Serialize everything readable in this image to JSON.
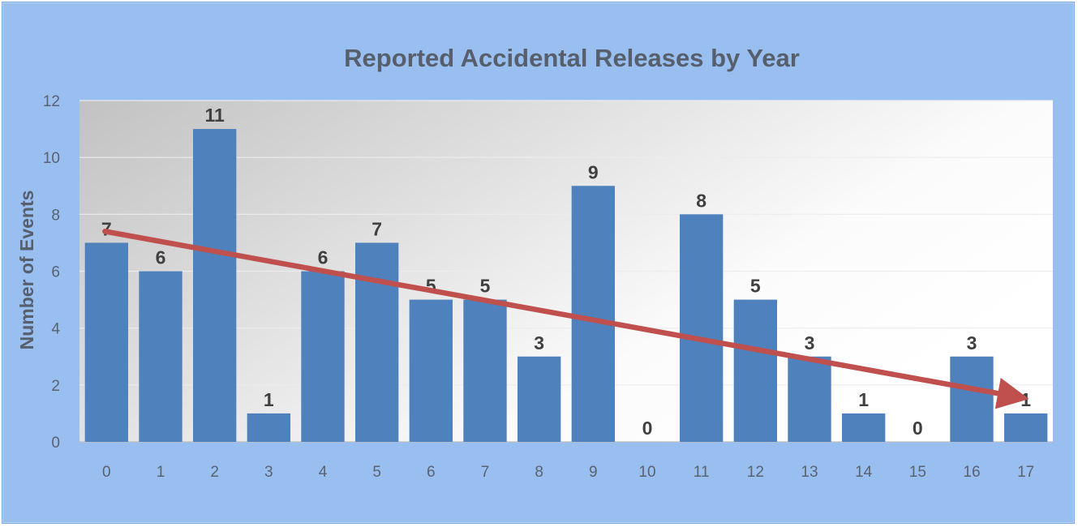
{
  "chart_data": {
    "type": "bar",
    "title": "Reported Accidental Releases by Year",
    "xlabel": "",
    "ylabel": "Number of Events",
    "categories": [
      "0",
      "1",
      "2",
      "3",
      "4",
      "5",
      "6",
      "7",
      "8",
      "9",
      "10",
      "11",
      "12",
      "13",
      "14",
      "15",
      "16",
      "17"
    ],
    "values": [
      7,
      6,
      11,
      1,
      6,
      7,
      5,
      5,
      3,
      9,
      0,
      8,
      5,
      3,
      1,
      0,
      3,
      1
    ],
    "ylim": [
      0,
      12
    ],
    "yticks": [
      0,
      2,
      4,
      6,
      8,
      10,
      12
    ],
    "grid": true,
    "data_labels": true,
    "bar_color": "#4f81bd",
    "trend_arrow": {
      "from_category": "0",
      "from_value": 7.4,
      "to_category": "17",
      "to_value": 1.6,
      "color": "#c0504d"
    },
    "background_color": "#99bff0"
  }
}
